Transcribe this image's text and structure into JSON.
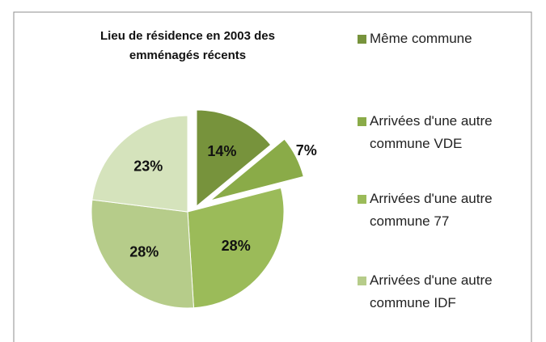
{
  "chart_data": {
    "type": "pie",
    "title": "Lieu de résidence en 2003 des emménagés récents",
    "categories": [
      "Même commune",
      "Arrivées d'une autre commune VDE",
      "Arrivées d'une autre commune 77",
      "Arrivées d'une autre commune IDF",
      null
    ],
    "values": [
      14,
      7,
      28,
      28,
      23
    ],
    "value_labels": [
      "14%",
      "7%",
      "28%",
      "28%",
      "23%"
    ],
    "colors": [
      "#77933c",
      "#8aab48",
      "#9bbb59",
      "#b6cc8a",
      "#d5e3bc"
    ]
  }
}
